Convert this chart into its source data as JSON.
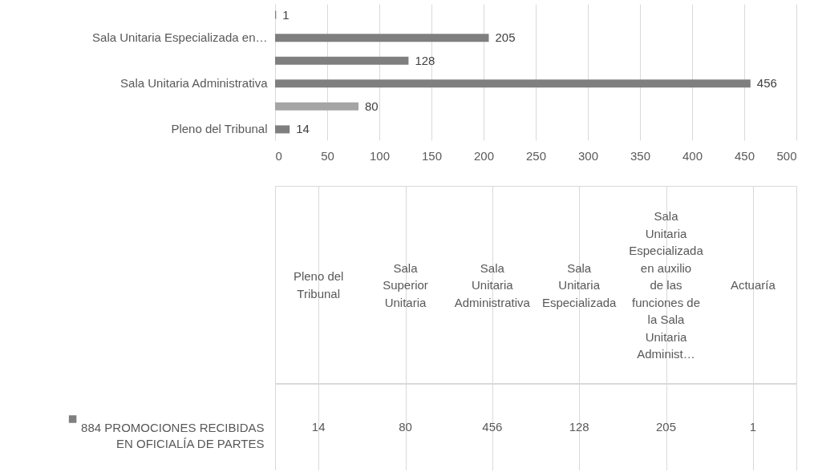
{
  "chart_data": [
    {
      "type": "bar",
      "orientation": "horizontal",
      "categories": [
        null,
        "Sala Unitaria Especializada en…",
        null,
        "Sala Unitaria Administrativa",
        null,
        "Pleno del Tribunal"
      ],
      "series": [
        {
          "values": [
            1,
            205,
            128,
            456,
            80,
            14
          ]
        }
      ],
      "colors": [
        "#7f7f7f",
        "#7f7f7f",
        "#7f7f7f",
        "#7f7f7f",
        "#a5a5a5",
        "#7f7f7f"
      ],
      "xlim": [
        0,
        500
      ],
      "xticks": [
        0,
        50,
        100,
        150,
        200,
        250,
        300,
        350,
        400,
        450,
        500
      ],
      "grid": "x",
      "data_labels": true
    },
    {
      "type": "other",
      "categories": [
        "Pleno del Tribunal",
        "Sala Superior Unitaria",
        "Sala Unitaria Administrativa",
        "Sala Unitaria Especializada",
        "Sala Unitaria Especializada en auxilio de las funciones de la Sala Unitaria Administ…",
        "Actuaría"
      ],
      "series": [
        {
          "name": "884 PROMOCIONES RECIBIDAS EN OFICIALÍA DE PARTES",
          "color": "#7f7f7f",
          "values": [
            14,
            80,
            456,
            128,
            205,
            1
          ]
        }
      ],
      "data_labels": true,
      "legend": "left"
    }
  ]
}
